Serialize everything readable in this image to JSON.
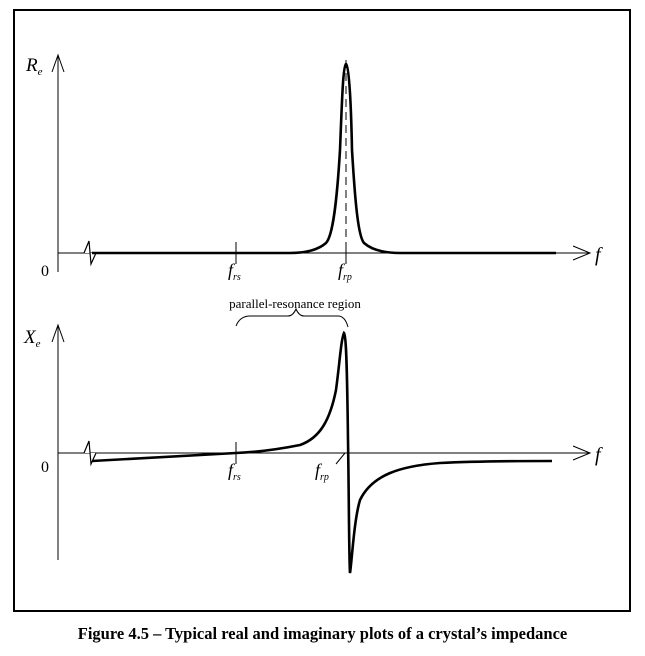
{
  "figure": {
    "caption": "Figure 4.5 – Typical real and imaginary plots of a crystal’s impedance",
    "region_label": "parallel-resonance region"
  },
  "top_plot": {
    "y_label": "R",
    "y_label_sub": "e",
    "zero_label": "0",
    "x_label": "f",
    "tick1_main": "f",
    "tick1_sub": "rs",
    "tick2_main": "f",
    "tick2_sub": "rp"
  },
  "bottom_plot": {
    "y_label": "X",
    "y_label_sub": "e",
    "zero_label": "0",
    "x_label": "f",
    "tick1_main": "f",
    "tick1_sub": "rs",
    "tick2_main": "f",
    "tick2_sub": "rp"
  },
  "colors": {
    "stroke": "#000000",
    "background": "#ffffff"
  }
}
